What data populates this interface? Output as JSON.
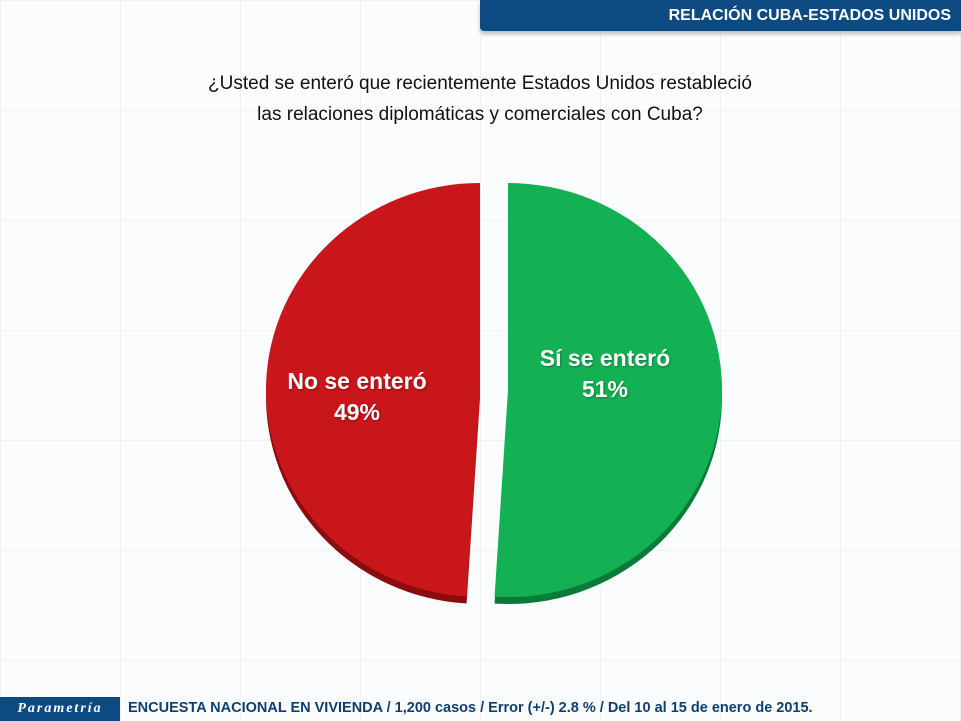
{
  "header": {
    "title": "RELACIÓN CUBA-ESTADOS UNIDOS"
  },
  "chart_data": {
    "type": "pie",
    "title": "¿Usted se enteró que recientemente Estados Unidos restableció las relaciones diplomáticas y comerciales con Cuba?",
    "title_lines": [
      "¿Usted se enteró que recientemente Estados Unidos restableció",
      "las relaciones diplomáticas y comerciales con Cuba?"
    ],
    "slices": [
      {
        "label": "Sí se enteró",
        "value": 51,
        "value_label": "51%",
        "color": "#13b154",
        "edge": "#0a7a38"
      },
      {
        "label": "No se enteró",
        "value": 49,
        "value_label": "49%",
        "color": "#c8161a",
        "edge": "#8a0c0f"
      }
    ]
  },
  "footer": {
    "logo": "Parametría",
    "text": "ENCUESTA NACIONAL EN VIVIENDA / 1,200 casos / Error (+/-) 2.8 % / Del 10 al 15 de enero de 2015."
  }
}
